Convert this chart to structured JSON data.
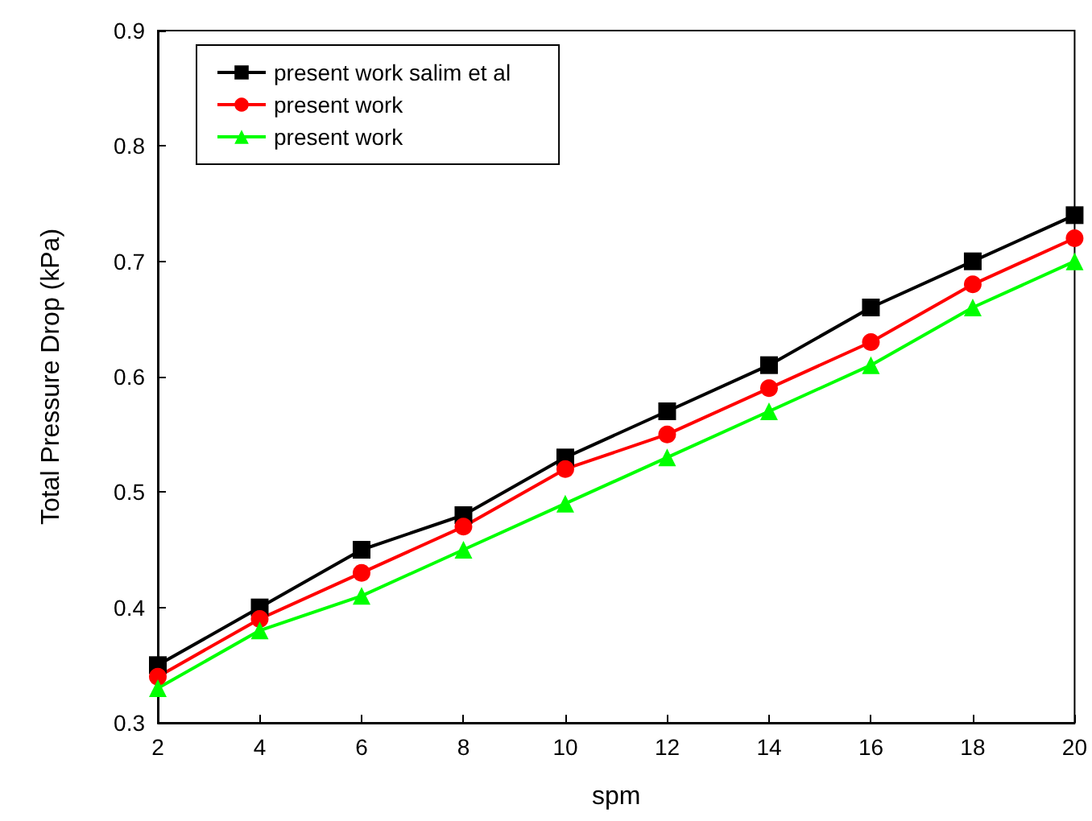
{
  "chart_data": {
    "type": "line",
    "xlabel": "spm",
    "ylabel": "Total Pressure Drop (kPa)",
    "x": [
      2,
      4,
      6,
      8,
      10,
      12,
      14,
      16,
      18,
      20
    ],
    "series": [
      {
        "name": "present work salim et al",
        "color": "#000000",
        "marker": "square",
        "values": [
          0.35,
          0.4,
          0.45,
          0.48,
          0.53,
          0.57,
          0.61,
          0.66,
          0.7,
          0.74
        ]
      },
      {
        "name": "present work",
        "color": "#ff0000",
        "marker": "circle",
        "values": [
          0.34,
          0.39,
          0.43,
          0.47,
          0.52,
          0.55,
          0.59,
          0.63,
          0.68,
          0.72
        ]
      },
      {
        "name": "present work",
        "color": "#00ff00",
        "marker": "triangle",
        "values": [
          0.33,
          0.38,
          0.41,
          0.45,
          0.49,
          0.53,
          0.57,
          0.61,
          0.66,
          0.7
        ]
      }
    ],
    "xlim": [
      2,
      20
    ],
    "xticks": [
      2,
      4,
      6,
      8,
      10,
      12,
      14,
      16,
      18,
      20
    ],
    "ylim": [
      0.3,
      0.9
    ],
    "yticks": [
      0.3,
      0.4,
      0.5,
      0.6,
      0.7,
      0.8,
      0.9
    ],
    "grid": false,
    "legend": "top left",
    "line_style": "solid"
  }
}
